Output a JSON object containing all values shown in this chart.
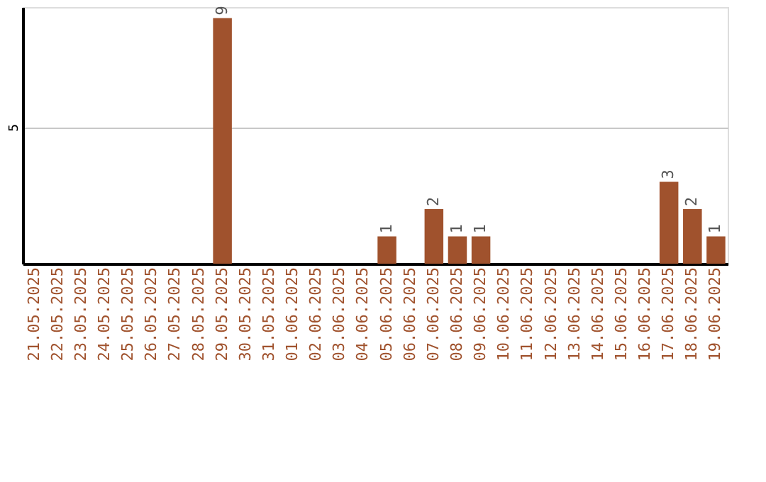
{
  "chart_data": {
    "type": "bar",
    "categories": [
      "21.05.2025",
      "22.05.2025",
      "23.05.2025",
      "24.05.2025",
      "25.05.2025",
      "26.05.2025",
      "27.05.2025",
      "28.05.2025",
      "29.05.2025",
      "30.05.2025",
      "31.05.2025",
      "01.06.2025",
      "02.06.2025",
      "03.06.2025",
      "04.06.2025",
      "05.06.2025",
      "06.06.2025",
      "07.06.2025",
      "08.06.2025",
      "09.06.2025",
      "10.06.2025",
      "11.06.2025",
      "12.06.2025",
      "13.06.2025",
      "14.06.2025",
      "15.06.2025",
      "16.06.2025",
      "17.06.2025",
      "18.06.2025",
      "19.06.2025"
    ],
    "values": [
      0,
      0,
      0,
      0,
      0,
      0,
      0,
      0,
      9,
      0,
      0,
      0,
      0,
      0,
      0,
      1,
      0,
      2,
      1,
      1,
      0,
      0,
      0,
      0,
      0,
      0,
      0,
      3,
      2,
      1
    ],
    "value_labels": [
      null,
      null,
      null,
      null,
      null,
      null,
      null,
      null,
      "9",
      null,
      null,
      null,
      null,
      null,
      null,
      "1",
      null,
      "2",
      "1",
      "1",
      null,
      null,
      null,
      null,
      null,
      null,
      null,
      "3",
      "2",
      "1"
    ],
    "color": "#a0522d",
    "ylim": [
      0,
      9.4
    ],
    "yticks": [
      5
    ],
    "grid": "y"
  }
}
